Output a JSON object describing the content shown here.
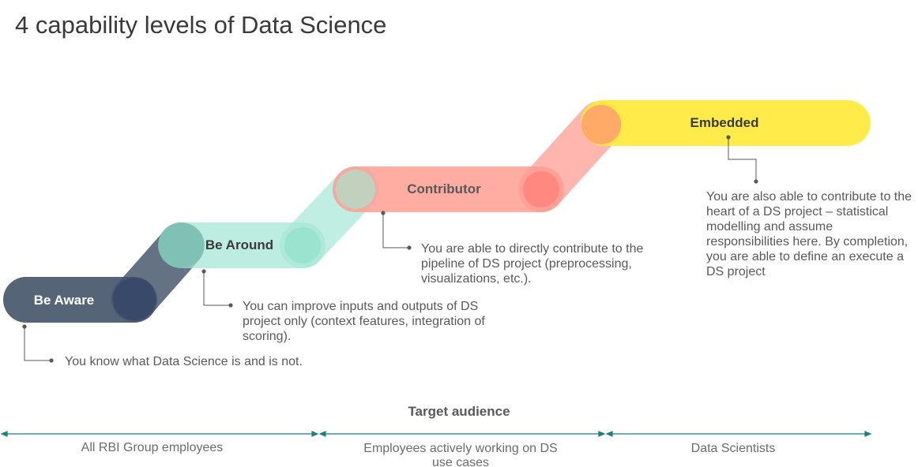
{
  "title": "4 capability levels of Data Science",
  "levels": [
    {
      "name": "Be Aware",
      "color": "#44546A",
      "description": "You know what Data Science is and is not."
    },
    {
      "name": "Be Around",
      "color": "#A6E8D6",
      "description": "You can improve inputs and outputs of DS project only (context features, integration of scoring)."
    },
    {
      "name": "Contributor",
      "color": "#FF9E94",
      "description": "You are able to directly contribute to the pipeline of DS project (preprocessing, visualizations, etc.)."
    },
    {
      "name": "Embedded",
      "color": "#FFEB3B",
      "description": "You are also able to contribute to the heart of a DS project – statistical modelling and assume responsibilities here. By completion, you are able to define an execute a DS project"
    }
  ],
  "audience": {
    "title": "Target audience",
    "color": "#1F7F7F",
    "groups": [
      "All RBI Group employees",
      "Employees actively working on DS use cases",
      "Data Scientists"
    ]
  }
}
